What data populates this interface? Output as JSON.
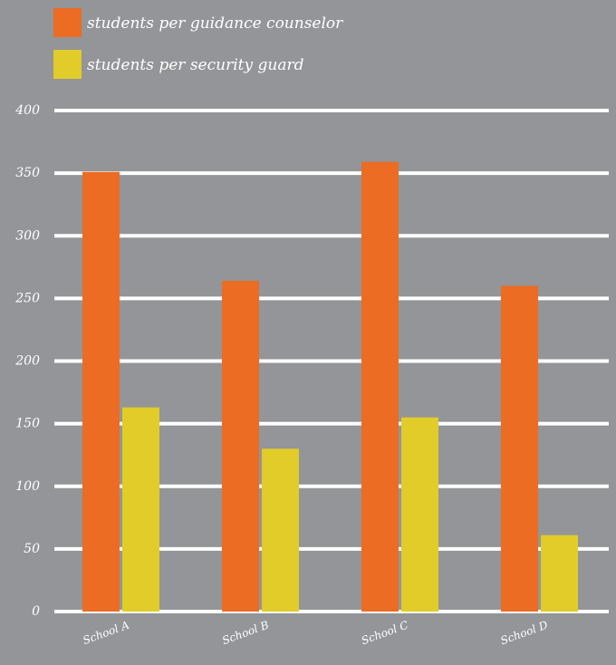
{
  "colors": {
    "background": "#939598",
    "gridline": "#ffffff",
    "counselor": "#ec6c23",
    "guard": "#e1cc29",
    "text": "#ffffff"
  },
  "chart_data": {
    "type": "bar",
    "categories": [
      "School A",
      "School B",
      "School C",
      "School D"
    ],
    "series": [
      {
        "name": "students per guidance counselor",
        "values": [
          351,
          264,
          359,
          260
        ]
      },
      {
        "name": "students per security guard",
        "values": [
          163,
          130,
          155,
          61
        ]
      }
    ],
    "ylim": [
      0,
      400
    ],
    "yticks": [
      "0",
      "50",
      "100",
      "150",
      "200",
      "250",
      "300",
      "350",
      "400"
    ],
    "grid": true,
    "legend_position": "top-left"
  }
}
